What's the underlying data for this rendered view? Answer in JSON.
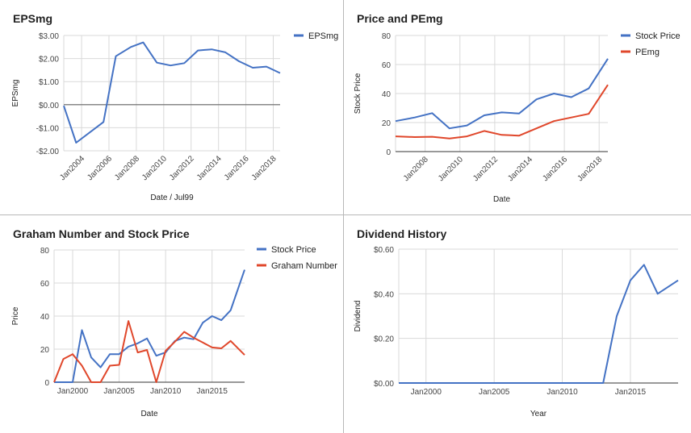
{
  "colors": {
    "blue": "#4472c4",
    "red": "#e0472b",
    "grid": "#d9d9d9",
    "zero": "#666666"
  },
  "chart_data": [
    {
      "type": "line",
      "title": "EPSmg",
      "xlabel": "Date / Jul99",
      "ylabel": "EPSmg",
      "y_format": "currency2",
      "xlim": [
        2002.7,
        2018.5
      ],
      "ylim": [
        -2,
        3
      ],
      "yticks": [
        -2,
        -1,
        0,
        1,
        2,
        3
      ],
      "xticks": [
        {
          "v": 2004,
          "label": "Jan2004"
        },
        {
          "v": 2006,
          "label": "Jan2006"
        },
        {
          "v": 2008,
          "label": "Jan2008"
        },
        {
          "v": 2010,
          "label": "Jan2010"
        },
        {
          "v": 2012,
          "label": "Jan2012"
        },
        {
          "v": 2014,
          "label": "Jan2014"
        },
        {
          "v": 2016,
          "label": "Jan2016"
        },
        {
          "v": 2018,
          "label": "Jan2018"
        }
      ],
      "x_tick_rotate": true,
      "zero_line": true,
      "series": [
        {
          "name": "EPSmg",
          "color": "#4472c4",
          "x": [
            2002.7,
            2003.6,
            2005.6,
            2006.5,
            2007.6,
            2008.5,
            2009.5,
            2010.5,
            2011.5,
            2012.5,
            2013.5,
            2014.5,
            2015.5,
            2016.5,
            2017.5,
            2018.5
          ],
          "y": [
            -0.05,
            -1.65,
            -0.75,
            2.1,
            2.5,
            2.7,
            1.82,
            1.7,
            1.8,
            2.35,
            2.4,
            2.27,
            1.88,
            1.6,
            1.65,
            1.37
          ]
        }
      ]
    },
    {
      "type": "line",
      "title": "Price and PEmg",
      "xlabel": "Date",
      "ylabel": "Stock Price",
      "y_format": "int",
      "xlim": [
        2006.3,
        2018.5
      ],
      "ylim": [
        0,
        80
      ],
      "yticks": [
        0,
        20,
        40,
        60,
        80
      ],
      "xticks": [
        {
          "v": 2008,
          "label": "Jan2008"
        },
        {
          "v": 2010,
          "label": "Jan2010"
        },
        {
          "v": 2012,
          "label": "Jan2012"
        },
        {
          "v": 2014,
          "label": "Jan2014"
        },
        {
          "v": 2016,
          "label": "Jan2016"
        },
        {
          "v": 2018,
          "label": "Jan2018"
        }
      ],
      "x_tick_rotate": true,
      "zero_line": false,
      "series": [
        {
          "name": "Stock Price",
          "color": "#4472c4",
          "x": [
            2006.3,
            2007.4,
            2008.4,
            2009.4,
            2010.4,
            2011.4,
            2012.4,
            2013.4,
            2014.4,
            2015.4,
            2016.4,
            2017.4,
            2018.5
          ],
          "y": [
            21,
            23.5,
            26.5,
            16,
            18,
            25,
            27,
            26.3,
            36,
            40,
            37.5,
            43.5,
            64
          ]
        },
        {
          "name": "PEmg",
          "color": "#e0472b",
          "x": [
            2006.3,
            2007.4,
            2008.4,
            2009.4,
            2010.4,
            2011.4,
            2012.4,
            2013.4,
            2014.4,
            2015.4,
            2016.4,
            2017.4,
            2018.5
          ],
          "y": [
            10.5,
            10,
            10.2,
            9,
            10.5,
            14.2,
            11.5,
            11,
            16,
            21,
            23.5,
            26,
            46
          ]
        }
      ]
    },
    {
      "type": "line",
      "title": "Graham Number and Stock Price",
      "xlabel": "Date",
      "ylabel": "Price",
      "y_format": "int",
      "xlim": [
        1998,
        2018.5
      ],
      "ylim": [
        0,
        80
      ],
      "yticks": [
        0,
        20,
        40,
        60,
        80
      ],
      "xticks": [
        {
          "v": 2000,
          "label": "Jan2000"
        },
        {
          "v": 2005,
          "label": "Jan2005"
        },
        {
          "v": 2010,
          "label": "Jan2010"
        },
        {
          "v": 2015,
          "label": "Jan2015"
        }
      ],
      "x_tick_rotate": false,
      "zero_line": false,
      "series": [
        {
          "name": "Stock Price",
          "color": "#4472c4",
          "x": [
            1998,
            1999,
            2000,
            2001,
            2002,
            2003,
            2004,
            2005,
            2006,
            2007,
            2008,
            2009,
            2010,
            2011,
            2012,
            2013,
            2014,
            2015,
            2016,
            2017,
            2018.5
          ],
          "y": [
            0,
            0,
            0,
            31.5,
            15,
            9,
            17,
            17,
            21.5,
            23.5,
            26.5,
            16,
            18,
            25,
            27,
            26,
            36,
            40,
            37.5,
            43.5,
            68
          ]
        },
        {
          "name": "Graham Number",
          "color": "#e0472b",
          "x": [
            1998,
            1999,
            2000,
            2001,
            2002,
            2003,
            2004,
            2005,
            2006,
            2007,
            2008,
            2009,
            2010,
            2011,
            2012,
            2013,
            2014,
            2015,
            2016,
            2017,
            2018.5
          ],
          "y": [
            0,
            14,
            17,
            10,
            0,
            0,
            10,
            10.5,
            37,
            18,
            19.5,
            0,
            19,
            24.5,
            30.5,
            27,
            24,
            21,
            20.5,
            25,
            16.5
          ]
        }
      ]
    },
    {
      "type": "line",
      "title": "Dividend History",
      "xlabel": "Year",
      "ylabel": "Dividend",
      "y_format": "currency2",
      "xlim": [
        1998,
        2018.5
      ],
      "ylim": [
        0,
        0.6
      ],
      "yticks": [
        0,
        0.2,
        0.4,
        0.6
      ],
      "xticks": [
        {
          "v": 2000,
          "label": "Jan2000"
        },
        {
          "v": 2005,
          "label": "Jan2005"
        },
        {
          "v": 2010,
          "label": "Jan2010"
        },
        {
          "v": 2015,
          "label": "Jan2015"
        }
      ],
      "x_tick_rotate": false,
      "zero_line": false,
      "series": [
        {
          "name": "Dividend",
          "color": "#4472c4",
          "hide_legend": true,
          "x": [
            1998,
            2013,
            2014,
            2015,
            2016,
            2017,
            2018.5
          ],
          "y": [
            0,
            0,
            0.3,
            0.46,
            0.53,
            0.4,
            0.46
          ]
        }
      ]
    }
  ]
}
